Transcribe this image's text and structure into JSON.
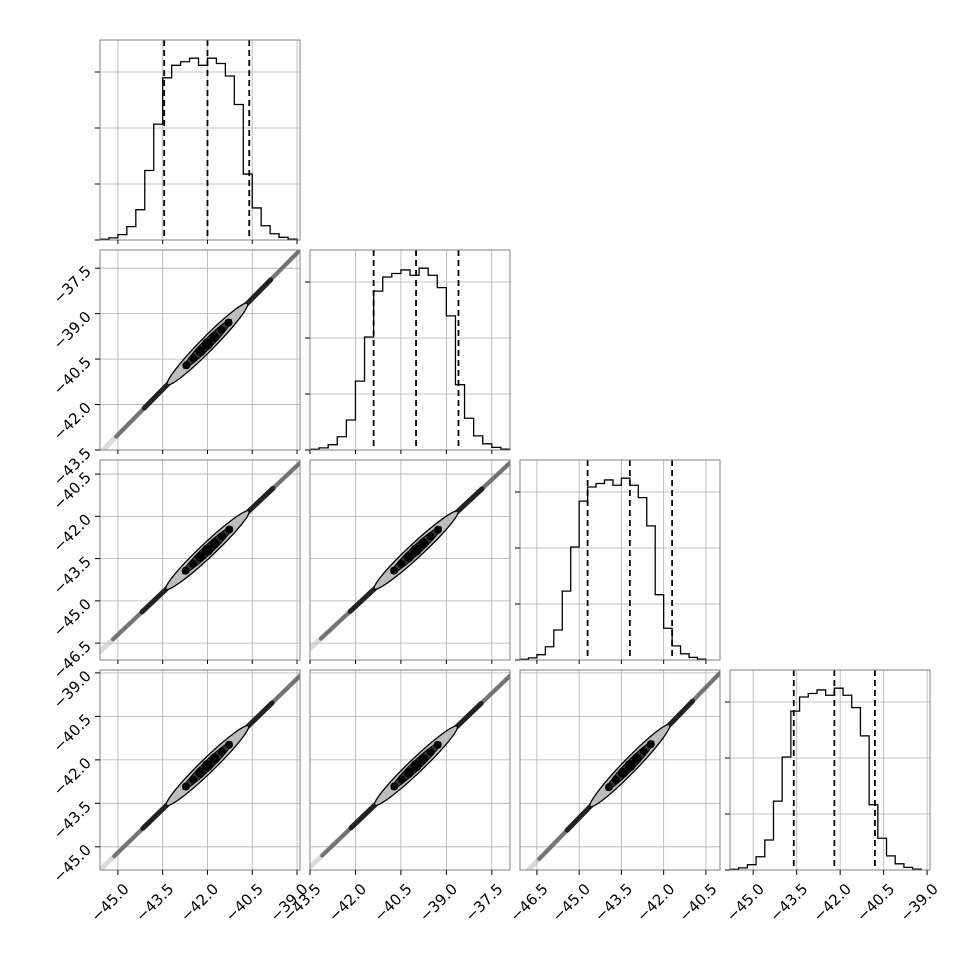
{
  "chart_data": {
    "type": "corner",
    "grid": true,
    "colors": {
      "histogram_line": "#000000",
      "quantile_line": "#000000",
      "contour": "#000000",
      "density_dark": "#000000",
      "density_light": "#bdbdbd",
      "grid": "#b0b0b0",
      "frame": "#808080"
    },
    "variables": [
      {
        "range": [
          -45.6,
          -38.9
        ],
        "ticks": [
          -45.0,
          -43.5,
          -42.0,
          -40.5,
          -39.0
        ],
        "tick_labels": [
          "−45.0",
          "−43.5",
          "−42.0",
          "−40.5",
          "−39.0"
        ],
        "quantiles": [
          -43.45,
          -42.0,
          -40.6
        ],
        "histogram": {
          "edges": [
            -45.6,
            -45.3,
            -45.0,
            -44.7,
            -44.4,
            -44.1,
            -43.8,
            -43.5,
            -43.2,
            -42.9,
            -42.6,
            -42.3,
            -42.0,
            -41.7,
            -41.4,
            -41.1,
            -40.8,
            -40.5,
            -40.2,
            -39.9,
            -39.6,
            -39.3,
            -39.0
          ],
          "counts": [
            0.4,
            1.2,
            3,
            7.5,
            17,
            39,
            65,
            91,
            98,
            100,
            102,
            98,
            102,
            99,
            92,
            76,
            37,
            18,
            8,
            3.5,
            1.5,
            0.5
          ]
        }
      },
      {
        "range": [
          -43.5,
          -36.9
        ],
        "ticks": [
          -43.5,
          -42.0,
          -40.5,
          -39.0,
          -37.5
        ],
        "tick_labels": [
          "−43.5",
          "−42.0",
          "−40.5",
          "−39.0",
          "−37.5"
        ],
        "quantiles": [
          -41.4,
          -40.0,
          -38.6
        ],
        "histogram": {
          "edges": [
            -43.5,
            -43.2,
            -42.9,
            -42.6,
            -42.3,
            -42.0,
            -41.7,
            -41.4,
            -41.1,
            -40.8,
            -40.5,
            -40.2,
            -39.9,
            -39.6,
            -39.3,
            -39.0,
            -38.7,
            -38.4,
            -38.1,
            -37.8,
            -37.5,
            -37.2,
            -36.9
          ],
          "counts": [
            0.4,
            1.2,
            3,
            7.5,
            17,
            39,
            64,
            90,
            98,
            100,
            102,
            99,
            103,
            99,
            92,
            76,
            37,
            18,
            8,
            3.5,
            1.5,
            0.5
          ]
        }
      },
      {
        "range": [
          -47.1,
          -40.0
        ],
        "ticks": [
          -46.5,
          -45.0,
          -43.5,
          -42.0,
          -40.5
        ],
        "tick_labels": [
          "−46.5",
          "−45.0",
          "−43.5",
          "−42.0",
          "−40.5"
        ],
        "quantiles": [
          -44.7,
          -43.2,
          -41.7
        ],
        "histogram": {
          "edges": [
            -47.1,
            -46.8,
            -46.5,
            -46.2,
            -45.9,
            -45.6,
            -45.3,
            -45.0,
            -44.7,
            -44.4,
            -44.1,
            -43.8,
            -43.5,
            -43.2,
            -42.9,
            -42.6,
            -42.3,
            -42.0,
            -41.7,
            -41.4,
            -41.1,
            -40.8,
            -40.5
          ],
          "counts": [
            0.4,
            1.2,
            3,
            7.5,
            17,
            39,
            64,
            90,
            98,
            100,
            102,
            99,
            103,
            99,
            92,
            76,
            37,
            18,
            8,
            3.5,
            1.5,
            0.5
          ]
        }
      },
      {
        "range": [
          -45.8,
          -38.9
        ],
        "ticks": [
          -45.0,
          -43.5,
          -42.0,
          -40.5,
          -39.0
        ],
        "tick_labels": [
          "−45.0",
          "−43.5",
          "−42.0",
          "−40.5",
          "−39.0"
        ],
        "quantiles": [
          -43.6,
          -42.2,
          -40.8
        ],
        "histogram": {
          "edges": [
            -45.8,
            -45.5,
            -45.2,
            -44.9,
            -44.6,
            -44.3,
            -44.0,
            -43.7,
            -43.4,
            -43.1,
            -42.8,
            -42.5,
            -42.2,
            -41.9,
            -41.6,
            -41.3,
            -41.0,
            -40.7,
            -40.4,
            -40.1,
            -39.8,
            -39.5,
            -39.2
          ],
          "counts": [
            0.4,
            1.2,
            3,
            7.5,
            17,
            39,
            64,
            90,
            98,
            100,
            102,
            99,
            103,
            99,
            92,
            76,
            37,
            18,
            8,
            3.5,
            1.5,
            0.5
          ]
        }
      }
    ],
    "scatter_panels": [
      {
        "x_var": 0,
        "y_var": 1,
        "center": [
          -42.0,
          -40.0
        ],
        "slope": 1.0
      },
      {
        "x_var": 0,
        "y_var": 2,
        "center": [
          -42.0,
          -43.2
        ],
        "slope": 1.0
      },
      {
        "x_var": 1,
        "y_var": 2,
        "center": [
          -40.0,
          -43.2
        ],
        "slope": 1.0
      },
      {
        "x_var": 0,
        "y_var": 3,
        "center": [
          -42.0,
          -42.2
        ],
        "slope": 1.0
      },
      {
        "x_var": 1,
        "y_var": 3,
        "center": [
          -40.0,
          -42.2
        ],
        "slope": 1.0
      },
      {
        "x_var": 2,
        "y_var": 3,
        "center": [
          -43.2,
          -42.2
        ],
        "slope": 1.0
      }
    ]
  }
}
